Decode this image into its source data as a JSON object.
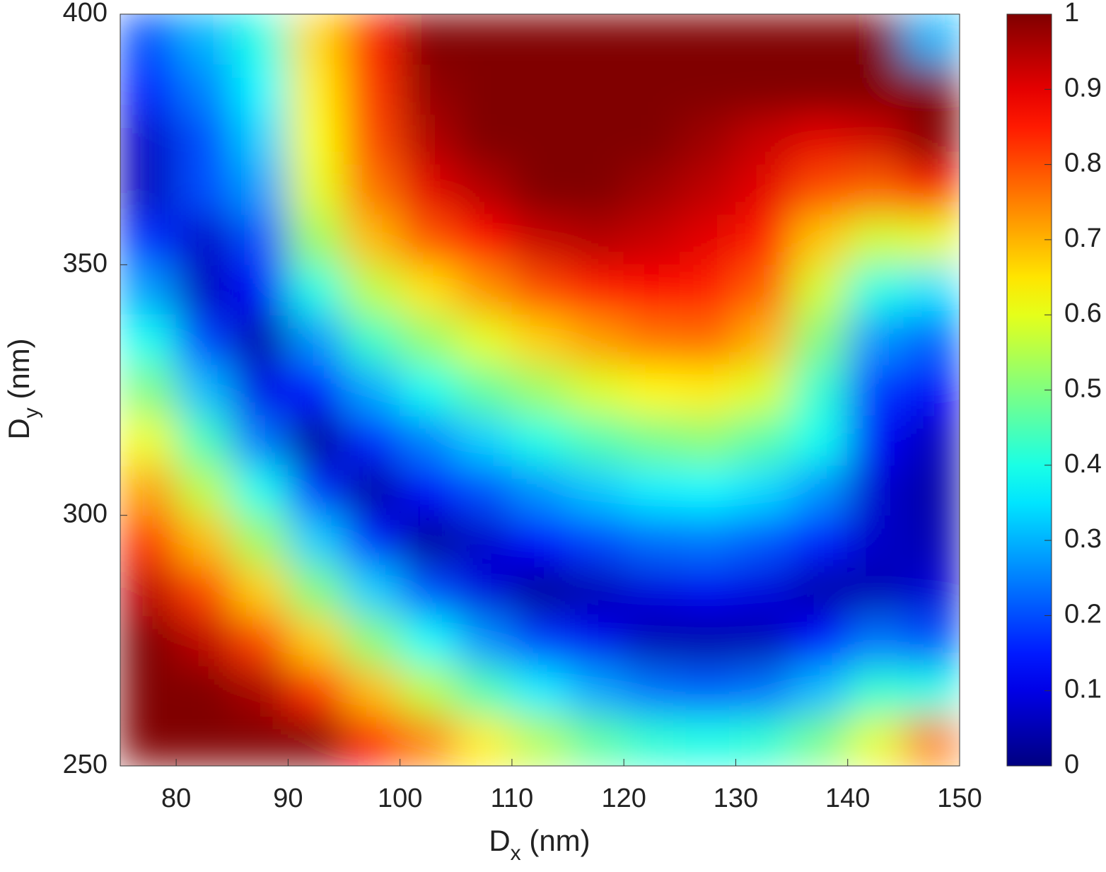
{
  "chart_data": {
    "type": "heatmap",
    "xlabel": [
      "D",
      "x",
      " (nm)"
    ],
    "ylabel": [
      "D",
      "y",
      " (nm)"
    ],
    "xlim": [
      75,
      150
    ],
    "ylim": [
      250,
      400
    ],
    "xticks": [
      80,
      90,
      100,
      110,
      120,
      130,
      140,
      150
    ],
    "yticks": [
      250,
      300,
      350,
      400
    ],
    "clim": [
      0,
      1
    ],
    "cticks": [
      0,
      0.1,
      0.2,
      0.3,
      0.4,
      0.5,
      0.6,
      0.7,
      0.8,
      0.9,
      1
    ],
    "colormap": "jet",
    "x": [
      77.5,
      82.5,
      87.5,
      92.5,
      97.5,
      102.5,
      107.5,
      112.5,
      117.5,
      122.5,
      127.5,
      132.5,
      137.5,
      142.5,
      147.5
    ],
    "y": [
      255,
      265,
      275,
      285,
      295,
      305,
      315,
      325,
      335,
      345,
      355,
      365,
      375,
      385,
      395
    ],
    "z": [
      [
        1,
        1,
        1,
        1,
        0.87,
        0.75,
        0.64,
        0.55,
        0.47,
        0.42,
        0.4,
        0.42,
        0.49,
        0.6,
        0.75
      ],
      [
        1,
        1,
        0.96,
        0.83,
        0.69,
        0.56,
        0.45,
        0.36,
        0.29,
        0.24,
        0.22,
        0.24,
        0.31,
        0.42,
        0.4
      ],
      [
        1,
        0.94,
        0.81,
        0.67,
        0.51,
        0.38,
        0.27,
        0.18,
        0.11,
        0.05,
        0.04,
        0.05,
        0.13,
        0.24,
        0.2
      ],
      [
        0.94,
        0.81,
        0.67,
        0.5,
        0.33,
        0.2,
        0.09,
        0.02,
        0.05,
        0.09,
        0.11,
        0.09,
        0.04,
        0.05,
        0.08
      ],
      [
        0.83,
        0.69,
        0.53,
        0.33,
        0.15,
        0.02,
        0.07,
        0.13,
        0.19,
        0.23,
        0.24,
        0.21,
        0.15,
        0.07,
        0.05
      ],
      [
        0.72,
        0.56,
        0.39,
        0.17,
        0.03,
        0.12,
        0.2,
        0.27,
        0.32,
        0.36,
        0.37,
        0.34,
        0.27,
        0.08,
        0.04
      ],
      [
        0.61,
        0.44,
        0.24,
        0.02,
        0.16,
        0.25,
        0.33,
        0.4,
        0.45,
        0.49,
        0.51,
        0.46,
        0.39,
        0.12,
        0.06
      ],
      [
        0.5,
        0.31,
        0.1,
        0.13,
        0.29,
        0.39,
        0.47,
        0.53,
        0.59,
        0.63,
        0.64,
        0.59,
        0.42,
        0.18,
        0.12
      ],
      [
        0.39,
        0.19,
        0.04,
        0.27,
        0.43,
        0.52,
        0.6,
        0.67,
        0.72,
        0.76,
        0.77,
        0.7,
        0.5,
        0.27,
        0.22
      ],
      [
        0.28,
        0.06,
        0.12,
        0.4,
        0.56,
        0.65,
        0.73,
        0.8,
        0.85,
        0.87,
        0.85,
        0.78,
        0.58,
        0.4,
        0.35
      ],
      [
        0.17,
        0.07,
        0.2,
        0.53,
        0.69,
        0.79,
        0.87,
        0.93,
        0.95,
        0.93,
        0.9,
        0.85,
        0.68,
        0.58,
        0.6
      ],
      [
        0.06,
        0.2,
        0.28,
        0.6,
        0.76,
        0.9,
        0.95,
        1,
        1,
        0.97,
        0.94,
        0.9,
        0.8,
        0.78,
        0.85
      ],
      [
        0.07,
        0.2,
        0.33,
        0.62,
        0.8,
        0.95,
        1,
        1,
        1,
        1,
        0.97,
        0.93,
        0.9,
        0.92,
        1
      ],
      [
        0.15,
        0.25,
        0.37,
        0.64,
        0.82,
        0.98,
        1,
        1,
        1,
        1,
        1,
        1,
        1,
        1,
        1
      ],
      [
        0.2,
        0.3,
        0.4,
        0.66,
        0.84,
        1,
        1,
        1,
        1,
        1,
        1,
        1,
        1,
        1,
        0.3
      ]
    ]
  }
}
